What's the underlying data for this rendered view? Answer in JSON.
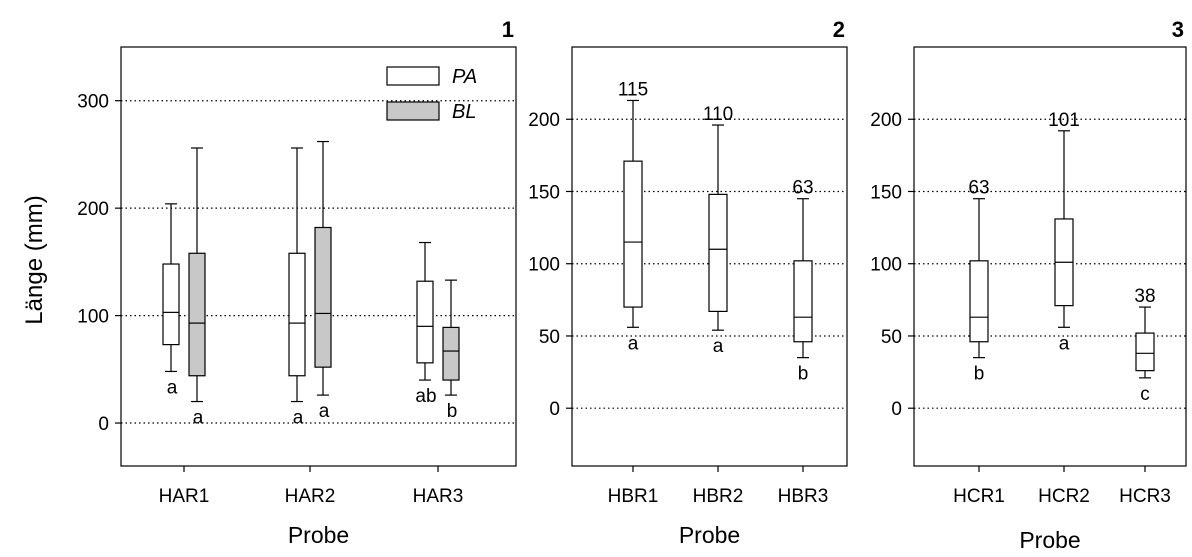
{
  "y_axis_label": "Länge (mm)",
  "legend_items": [
    {
      "name": "PA",
      "fill": "#ffffff"
    },
    {
      "name": "BL",
      "fill": "#c8c8c8"
    }
  ],
  "colors": {
    "box_white": "#ffffff",
    "box_gray": "#c8c8c8",
    "stroke": "#000000"
  },
  "chart_data": [
    {
      "type": "box",
      "panel_label": "1",
      "xlabel": "Probe",
      "ylim": [
        -40,
        350
      ],
      "yticks": [
        0,
        100,
        200,
        300
      ],
      "grid": "horizontal-dotted",
      "legend": "top-right",
      "categories": [
        "HAR1",
        "HAR2",
        "HAR3"
      ],
      "series": [
        {
          "name": "PA",
          "boxes": [
            {
              "min": 48,
              "q1": 73,
              "median": 103,
              "q3": 148,
              "max": 204,
              "letter": "a"
            },
            {
              "min": 20,
              "q1": 44,
              "median": 93,
              "q3": 158,
              "max": 256,
              "letter": "a"
            },
            {
              "min": 40,
              "q1": 56,
              "median": 90,
              "q3": 132,
              "max": 168,
              "letter": "ab"
            }
          ]
        },
        {
          "name": "BL",
          "boxes": [
            {
              "min": 20,
              "q1": 44,
              "median": 93,
              "q3": 158,
              "max": 256,
              "letter": "a"
            },
            {
              "min": 26,
              "q1": 52,
              "median": 102,
              "q3": 182,
              "max": 262,
              "letter": "a"
            },
            {
              "min": 26,
              "q1": 40,
              "median": 67,
              "q3": 89,
              "max": 133,
              "letter": "b"
            }
          ]
        }
      ]
    },
    {
      "type": "box",
      "panel_label": "2",
      "xlabel": "Probe",
      "ylim": [
        -40,
        250
      ],
      "yticks": [
        0,
        50,
        100,
        150,
        200
      ],
      "grid": "horizontal-dotted",
      "categories": [
        "HBR1",
        "HBR2",
        "HBR3"
      ],
      "series": [
        {
          "name": "PA",
          "boxes": [
            {
              "min": 56,
              "q1": 70,
              "median": 115,
              "q3": 171,
              "max": 213,
              "letter": "a",
              "label": "115"
            },
            {
              "min": 54,
              "q1": 67,
              "median": 110,
              "q3": 148,
              "max": 196,
              "letter": "a",
              "label": "110"
            },
            {
              "min": 35,
              "q1": 46,
              "median": 63,
              "q3": 102,
              "max": 145,
              "letter": "b",
              "label": "63"
            }
          ]
        }
      ]
    },
    {
      "type": "box",
      "panel_label": "3",
      "xlabel": "Probe",
      "ylim": [
        -40,
        250
      ],
      "yticks": [
        0,
        50,
        100,
        150,
        200
      ],
      "grid": "horizontal-dotted",
      "categories": [
        "HCR1",
        "HCR2",
        "HCR3"
      ],
      "series": [
        {
          "name": "PA",
          "boxes": [
            {
              "min": 35,
              "q1": 46,
              "median": 63,
              "q3": 102,
              "max": 145,
              "letter": "b",
              "label": "63"
            },
            {
              "min": 56,
              "q1": 71,
              "median": 101,
              "q3": 131,
              "max": 192,
              "letter": "a",
              "label": "101"
            },
            {
              "min": 21,
              "q1": 26,
              "median": 38,
              "q3": 52,
              "max": 70,
              "letter": "c",
              "label": "38"
            }
          ]
        }
      ]
    }
  ]
}
